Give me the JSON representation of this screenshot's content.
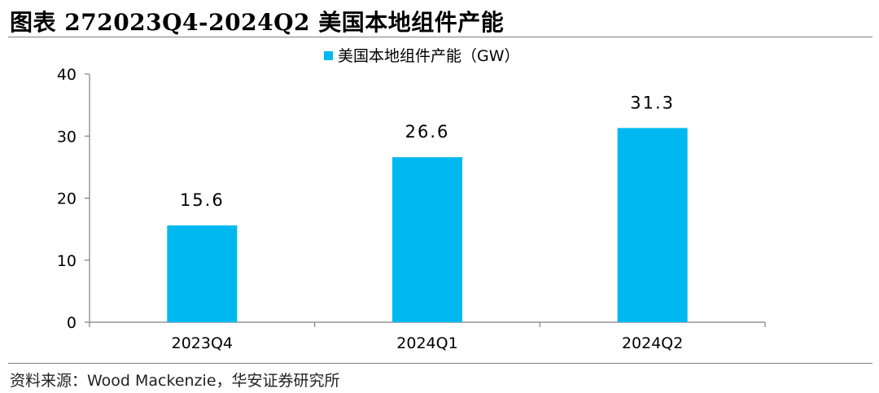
{
  "figure_title": "图表 272023Q4-2024Q2 美国本地组件产能",
  "source_note": "资料来源：Wood Mackenzie，华安证券研究所",
  "colors": {
    "bar": "#00B8F0",
    "axis": "#7f7f7f",
    "text": "#000000"
  },
  "chart_data": {
    "type": "bar",
    "title": "",
    "xlabel": "",
    "ylabel": "",
    "categories": [
      "2023Q4",
      "2024Q1",
      "2024Q2"
    ],
    "series": [
      {
        "name": "美国本地组件产能（GW）",
        "values": [
          15.6,
          26.6,
          31.3
        ],
        "data_labels": [
          "15.6",
          "26.6",
          "31.3"
        ]
      }
    ],
    "ylim": [
      0,
      40
    ],
    "yticks": [
      0,
      10,
      20,
      30,
      40
    ],
    "ytick_labels": [
      "0",
      "10",
      "20",
      "30",
      "40"
    ],
    "grid": false,
    "legend_position": "top-center"
  }
}
